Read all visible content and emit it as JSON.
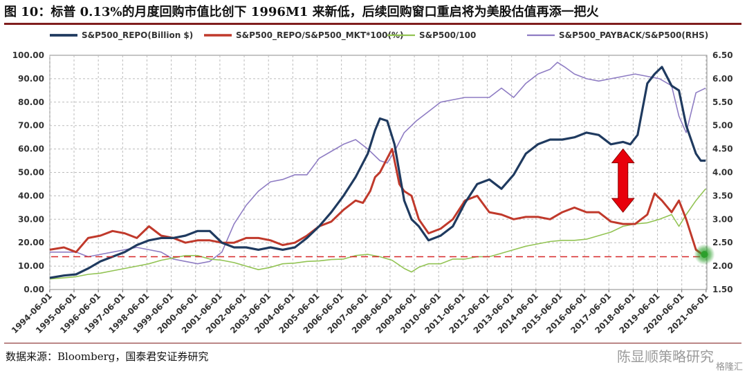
{
  "title": "图 10：标普 0.13%的月度回购市值比创下 1996M1 来新低，后续回购窗口重启将为美股估值再添一把火",
  "source": "数据来源：Bloomberg，国泰君安证券研究",
  "watermark": "陈显顺策略研究",
  "logo_text": "格隆汇",
  "colors": {
    "repo": "#1f3a5f",
    "repo_mkt": "#c0392b",
    "sp500": "#92c353",
    "payback": "#8e7cc3",
    "arrow": "#e8000b",
    "ref_line": "#d62728",
    "highlight": "#2ca02c"
  },
  "chart_data": {
    "type": "line",
    "legend": [
      "S&P500_REPO(Billion $)",
      "S&P500_REPO/S&P500_MKT*100(%)",
      "S&P500/100",
      "S&P500_PAYBACK/S&P500(RHS)"
    ],
    "legend_position": "top",
    "x_tick_labels": [
      "1994-06-01",
      "1995-06-01",
      "1996-06-01",
      "1997-06-01",
      "1998-06-01",
      "1999-06-01",
      "2000-06-01",
      "2001-06-01",
      "2002-06-01",
      "2003-06-01",
      "2004-06-01",
      "2005-06-01",
      "2006-06-01",
      "2007-06-01",
      "2008-06-01",
      "2009-06-01",
      "2010-06-01",
      "2011-06-01",
      "2012-06-01",
      "2013-06-01",
      "2014-06-01",
      "2015-06-01",
      "2016-06-01",
      "2017-06-01",
      "2018-06-01",
      "2019-06-01",
      "2020-06-01",
      "2021-06-01"
    ],
    "xlim": [
      1994.42,
      2021.45
    ],
    "ylim": [
      0,
      100
    ],
    "y_ticks": [
      "0.00",
      "10.00",
      "20.00",
      "30.00",
      "40.00",
      "50.00",
      "60.00",
      "70.00",
      "80.00",
      "90.00",
      "100.00"
    ],
    "y2lim": [
      1.5,
      6.5
    ],
    "y2_ticks": [
      "1.50",
      "2.00",
      "2.50",
      "3.00",
      "3.50",
      "4.00",
      "4.50",
      "5.00",
      "5.50",
      "6.00",
      "6.50"
    ],
    "grid": true,
    "annotations": {
      "reference_line_y": 14,
      "double_arrow": {
        "x": 2018.0,
        "y_top": 60,
        "y_bottom": 33
      },
      "highlight_point": {
        "x": 2021.35,
        "y": 15
      }
    },
    "series": [
      {
        "name": "S&P500_REPO(Billion $)",
        "axis": "left",
        "x": [
          1994.42,
          1995.0,
          1995.5,
          1996.0,
          1996.5,
          1997.0,
          1997.5,
          1998.0,
          1998.5,
          1999.0,
          1999.5,
          2000.0,
          2000.5,
          2001.0,
          2001.5,
          2002.0,
          2002.5,
          2003.0,
          2003.5,
          2004.0,
          2004.5,
          2005.0,
          2005.5,
          2006.0,
          2006.5,
          2007.0,
          2007.5,
          2007.8,
          2008.0,
          2008.3,
          2008.6,
          2009.0,
          2009.3,
          2009.6,
          2010.0,
          2010.5,
          2011.0,
          2011.5,
          2012.0,
          2012.5,
          2013.0,
          2013.5,
          2014.0,
          2014.5,
          2015.0,
          2015.5,
          2016.0,
          2016.5,
          2017.0,
          2017.5,
          2018.0,
          2018.3,
          2018.6,
          2019.0,
          2019.3,
          2019.6,
          2020.0,
          2020.3,
          2020.6,
          2021.0,
          2021.2,
          2021.4
        ],
        "y": [
          5,
          6,
          6.5,
          9,
          12,
          14,
          16,
          19,
          21,
          22,
          22,
          23,
          25,
          25,
          20,
          18,
          18,
          17,
          18,
          17,
          18,
          22,
          27,
          33,
          40,
          48,
          58,
          68,
          73,
          72,
          62,
          38,
          30,
          27,
          21,
          23,
          27,
          37,
          45,
          47,
          43,
          49,
          58,
          62,
          64,
          64,
          65,
          67,
          66,
          62,
          63,
          62,
          66,
          88,
          92,
          95,
          87,
          85,
          70,
          58,
          55,
          55
        ]
      },
      {
        "name": "S&P500_REPO/S&P500_MKT*100(%)",
        "axis": "left",
        "x": [
          1994.42,
          1995.0,
          1995.5,
          1996.0,
          1996.5,
          1997.0,
          1997.5,
          1998.0,
          1998.5,
          1999.0,
          1999.5,
          2000.0,
          2000.5,
          2001.0,
          2001.5,
          2002.0,
          2002.5,
          2003.0,
          2003.5,
          2004.0,
          2004.5,
          2005.0,
          2005.5,
          2006.0,
          2006.5,
          2007.0,
          2007.3,
          2007.6,
          2007.8,
          2008.0,
          2008.3,
          2008.5,
          2008.8,
          2009.0,
          2009.3,
          2009.6,
          2010.0,
          2010.5,
          2011.0,
          2011.5,
          2012.0,
          2012.5,
          2013.0,
          2013.5,
          2014.0,
          2014.5,
          2015.0,
          2015.5,
          2016.0,
          2016.5,
          2017.0,
          2017.5,
          2018.0,
          2018.5,
          2019.0,
          2019.3,
          2019.6,
          2020.0,
          2020.3,
          2020.6,
          2021.0,
          2021.4
        ],
        "y": [
          17,
          18,
          16,
          22,
          23,
          25,
          24,
          22,
          27,
          23,
          22,
          20,
          21,
          21,
          20,
          20,
          22,
          22,
          21,
          19,
          20,
          23,
          27,
          29,
          34,
          38,
          37,
          42,
          48,
          50,
          56,
          60,
          45,
          42,
          40,
          30,
          24,
          26,
          30,
          38,
          40,
          33,
          32,
          30,
          31,
          31,
          30,
          33,
          35,
          33,
          33,
          29,
          28,
          28,
          32,
          41,
          38,
          33,
          38,
          30,
          17,
          14
        ]
      },
      {
        "name": "S&P500/100",
        "axis": "left",
        "x": [
          1994.42,
          1995.0,
          1995.5,
          1996.0,
          1996.5,
          1997.0,
          1997.5,
          1998.0,
          1998.5,
          1999.0,
          1999.5,
          2000.0,
          2000.5,
          2001.0,
          2001.5,
          2002.0,
          2002.5,
          2003.0,
          2003.5,
          2004.0,
          2004.5,
          2005.0,
          2005.5,
          2006.0,
          2006.5,
          2007.0,
          2007.5,
          2008.0,
          2008.5,
          2009.0,
          2009.3,
          2009.6,
          2010.0,
          2010.5,
          2011.0,
          2011.5,
          2012.0,
          2012.5,
          2013.0,
          2013.5,
          2014.0,
          2014.5,
          2015.0,
          2015.5,
          2016.0,
          2016.5,
          2017.0,
          2017.5,
          2018.0,
          2018.5,
          2019.0,
          2019.5,
          2020.0,
          2020.3,
          2020.6,
          2021.0,
          2021.4
        ],
        "y": [
          4.5,
          5,
          5.5,
          6.5,
          7,
          8,
          9,
          10,
          11,
          12.5,
          13.5,
          14.5,
          14.5,
          13,
          12.5,
          11.5,
          10,
          8.5,
          9.5,
          11,
          11.3,
          12,
          12.2,
          12.8,
          13,
          14.5,
          15,
          14,
          12.5,
          9,
          7.5,
          9.5,
          11,
          11,
          13,
          13,
          14,
          14,
          15.5,
          17,
          18.5,
          19.5,
          20.5,
          21,
          21,
          21.5,
          23,
          24.5,
          27,
          28,
          28.5,
          30,
          32,
          27,
          32,
          38,
          43
        ]
      },
      {
        "name": "S&P500_PAYBACK/S&P500(RHS)",
        "axis": "right",
        "x": [
          1994.42,
          1995.0,
          1995.5,
          1996.0,
          1996.5,
          1997.0,
          1997.5,
          1998.0,
          1998.5,
          1999.0,
          1999.5,
          2000.0,
          2000.5,
          2001.0,
          2001.5,
          2002.0,
          2002.5,
          2003.0,
          2003.5,
          2004.0,
          2004.5,
          2005.0,
          2005.5,
          2006.0,
          2006.5,
          2007.0,
          2007.5,
          2008.0,
          2008.3,
          2008.6,
          2009.0,
          2009.5,
          2010.0,
          2010.5,
          2011.0,
          2011.5,
          2012.0,
          2012.5,
          2013.0,
          2013.5,
          2014.0,
          2014.5,
          2015.0,
          2015.3,
          2015.6,
          2016.0,
          2016.5,
          2017.0,
          2017.5,
          2018.0,
          2018.5,
          2019.0,
          2019.5,
          2020.0,
          2020.3,
          2020.6,
          2021.0,
          2021.4
        ],
        "y": [
          2.3,
          2.3,
          2.3,
          2.2,
          2.25,
          2.3,
          2.35,
          2.4,
          2.35,
          2.3,
          2.15,
          2.1,
          2.05,
          2.1,
          2.3,
          2.9,
          3.3,
          3.6,
          3.8,
          3.85,
          3.95,
          3.95,
          4.3,
          4.45,
          4.6,
          4.7,
          4.5,
          4.25,
          4.2,
          4.45,
          4.85,
          5.1,
          5.3,
          5.5,
          5.55,
          5.6,
          5.6,
          5.6,
          5.8,
          5.6,
          5.9,
          6.1,
          6.2,
          6.35,
          6.25,
          6.1,
          6.0,
          5.95,
          6.0,
          6.05,
          6.1,
          6.05,
          6.0,
          5.85,
          5.2,
          4.85,
          5.7,
          5.8
        ]
      }
    ]
  }
}
